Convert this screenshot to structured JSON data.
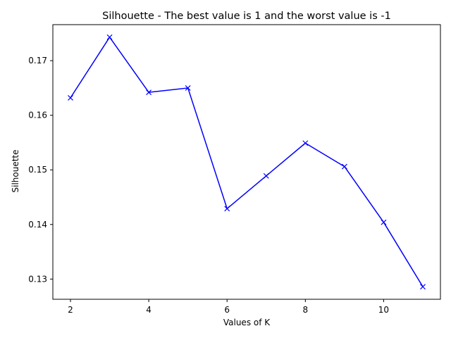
{
  "chart_data": {
    "type": "line",
    "title": "Silhouette - The best value is 1 and the worst value is -1",
    "xlabel": "Values of K",
    "ylabel": "Silhouette",
    "x": [
      2,
      3,
      4,
      5,
      6,
      7,
      8,
      9,
      10,
      11
    ],
    "series": [
      {
        "values": [
          0.1632,
          0.1743,
          0.1642,
          0.165,
          0.1429,
          0.1489,
          0.1549,
          0.1506,
          0.1404,
          0.1286
        ],
        "color": "#0000ff",
        "marker": "x"
      }
    ],
    "xticks": [
      2,
      4,
      6,
      8,
      10
    ],
    "xtick_labels": [
      "2",
      "4",
      "6",
      "8",
      "10"
    ],
    "yticks": [
      0.13,
      0.14,
      0.15,
      0.16,
      0.17
    ],
    "ytick_labels": [
      "0.13",
      "0.14",
      "0.15",
      "0.16",
      "0.17"
    ],
    "xlim": [
      1.55,
      11.45
    ],
    "ylim": [
      0.1263,
      0.1766
    ],
    "grid": false,
    "legend": "none"
  }
}
